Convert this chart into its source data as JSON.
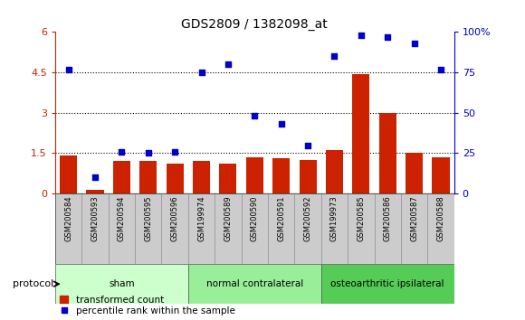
{
  "title": "GDS2809 / 1382098_at",
  "samples": [
    "GSM200584",
    "GSM200593",
    "GSM200594",
    "GSM200595",
    "GSM200596",
    "GSM199974",
    "GSM200589",
    "GSM200590",
    "GSM200591",
    "GSM200592",
    "GSM199973",
    "GSM200585",
    "GSM200586",
    "GSM200587",
    "GSM200588"
  ],
  "transformed_count": [
    1.4,
    0.15,
    1.2,
    1.2,
    1.1,
    1.2,
    1.1,
    1.35,
    1.3,
    1.25,
    1.6,
    4.45,
    3.0,
    1.5,
    1.35
  ],
  "percentile_rank": [
    77,
    10,
    26,
    25,
    26,
    75,
    80,
    48,
    43,
    30,
    85,
    98,
    97,
    93,
    77
  ],
  "red_color": "#cc2200",
  "blue_color": "#0000cc",
  "groups": [
    {
      "name": "sham",
      "start": 0,
      "end": 4,
      "color": "#ccffcc"
    },
    {
      "name": "normal contralateral",
      "start": 5,
      "end": 9,
      "color": "#99ee99"
    },
    {
      "name": "osteoarthritic ipsilateral",
      "start": 10,
      "end": 14,
      "color": "#55cc55"
    }
  ],
  "left_ylim": [
    0,
    6
  ],
  "right_ylim": [
    0,
    100
  ],
  "left_yticks": [
    0,
    1.5,
    3.0,
    4.5,
    6.0
  ],
  "right_yticks": [
    0,
    25,
    50,
    75,
    100
  ],
  "left_yticklabels": [
    "0",
    "1.5",
    "3",
    "4.5",
    "6"
  ],
  "right_yticklabels": [
    "0",
    "25",
    "50",
    "75",
    "100%"
  ],
  "bg_color": "#ffffff",
  "tick_label_bg": "#cccccc",
  "legend_red_label": "transformed count",
  "legend_blue_label": "percentile rank within the sample",
  "protocol_label": "protocol",
  "dotted_lines": [
    1.5,
    3.0,
    4.5
  ]
}
